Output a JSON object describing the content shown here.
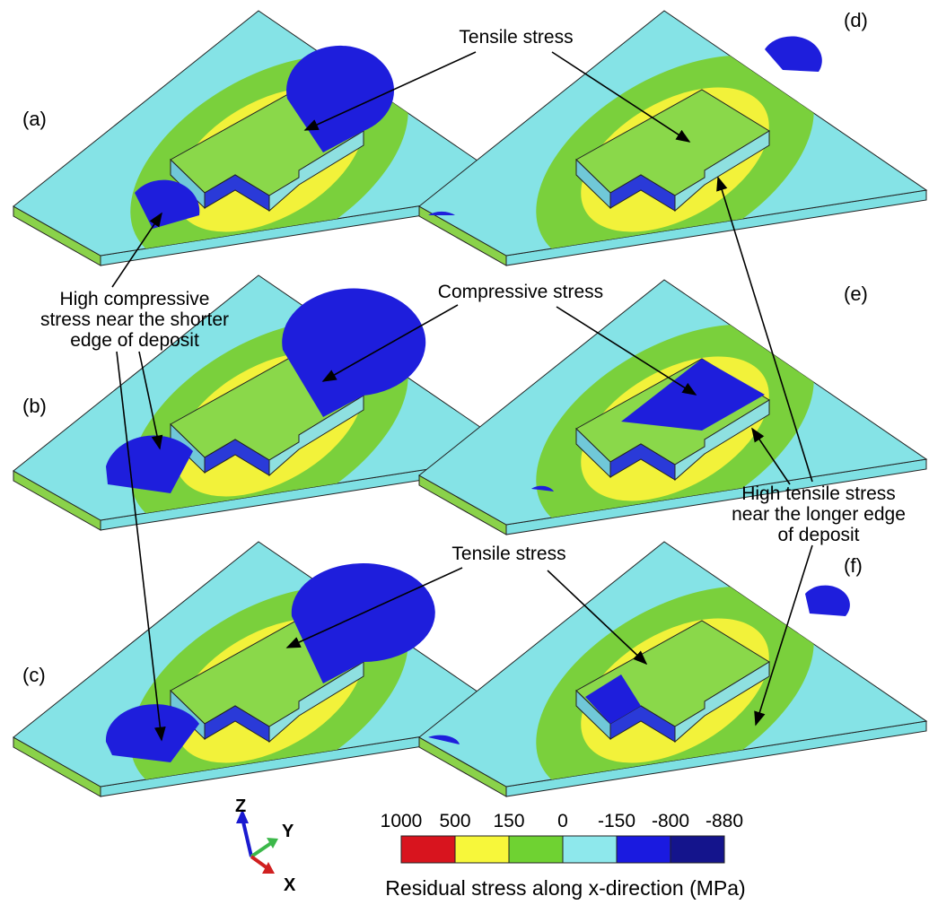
{
  "panels": [
    {
      "label": "(a)"
    },
    {
      "label": "(b)"
    },
    {
      "label": "(c)"
    },
    {
      "label": "(d)"
    },
    {
      "label": "(e)"
    },
    {
      "label": "(f)"
    }
  ],
  "annotations": [
    {
      "lines": [
        "Tensile stress"
      ]
    },
    {
      "lines": [
        "High compressive",
        "stress near the shorter",
        "edge of  deposit"
      ]
    },
    {
      "lines": [
        "Compressive stress"
      ]
    },
    {
      "lines": [
        "High tensile stress",
        "near the longer edge",
        "of  deposit"
      ]
    },
    {
      "lines": [
        "Tensile stress"
      ]
    }
  ],
  "triad": {
    "z": "Z",
    "y": "Y",
    "x": "X"
  },
  "colorbar": {
    "ticks": [
      1000,
      500,
      150,
      0,
      -150,
      -800,
      -880
    ],
    "title": "Residual stress along x-direction (MPa)"
  }
}
